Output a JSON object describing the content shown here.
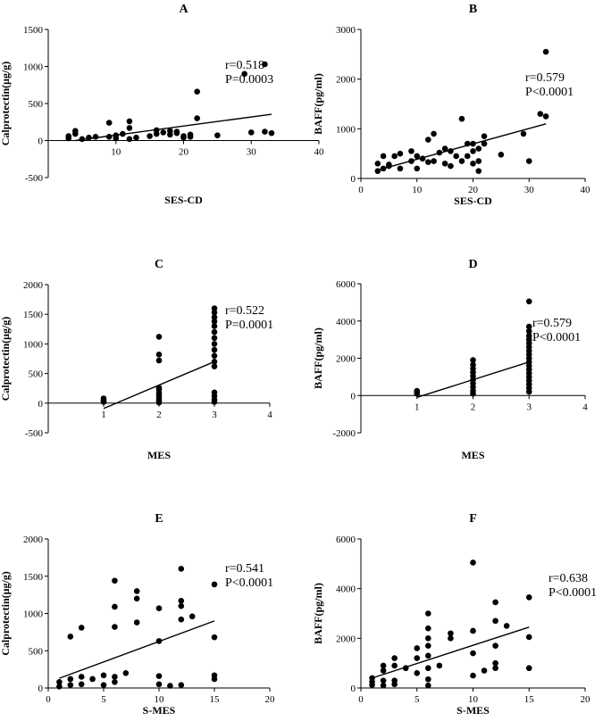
{
  "chart_data": [
    {
      "id": "A",
      "type": "scatter",
      "title": "A",
      "xlabel": "SES-CD",
      "ylabel": "Calprotectin(μg/g)",
      "xlim": [
        0,
        40
      ],
      "ylim": [
        -500,
        1500
      ],
      "xticks": [
        10,
        20,
        30,
        40
      ],
      "yticks": [
        -500,
        0,
        500,
        1000,
        1500
      ],
      "annotation": [
        "r=0.518",
        "P=0.0003"
      ],
      "fit": {
        "x": [
          4,
          33
        ],
        "y": [
          0,
          355
        ]
      },
      "points": [
        [
          3,
          30
        ],
        [
          3,
          60
        ],
        [
          4,
          90
        ],
        [
          4,
          130
        ],
        [
          5,
          20
        ],
        [
          6,
          40
        ],
        [
          7,
          50
        ],
        [
          9,
          240
        ],
        [
          9,
          50
        ],
        [
          10,
          30
        ],
        [
          10,
          70
        ],
        [
          11,
          90
        ],
        [
          12,
          260
        ],
        [
          12,
          170
        ],
        [
          12,
          20
        ],
        [
          13,
          40
        ],
        [
          15,
          60
        ],
        [
          16,
          140
        ],
        [
          16,
          90
        ],
        [
          17,
          110
        ],
        [
          18,
          130
        ],
        [
          18,
          80
        ],
        [
          19,
          100
        ],
        [
          19,
          120
        ],
        [
          20,
          60
        ],
        [
          20,
          40
        ],
        [
          21,
          80
        ],
        [
          21,
          50
        ],
        [
          22,
          660
        ],
        [
          22,
          300
        ],
        [
          25,
          70
        ],
        [
          29,
          900
        ],
        [
          30,
          110
        ],
        [
          32,
          1030
        ],
        [
          32,
          120
        ],
        [
          33,
          100
        ]
      ]
    },
    {
      "id": "B",
      "type": "scatter",
      "title": "B",
      "xlabel": "SES-CD",
      "ylabel": "BAFF(pg/ml)",
      "xlim": [
        0,
        40
      ],
      "ylim": [
        0,
        3000
      ],
      "xticks": [
        0,
        10,
        20,
        30,
        40
      ],
      "yticks": [
        0,
        1000,
        2000,
        3000
      ],
      "annotation": [
        "r=0.579",
        "P<0.0001"
      ],
      "fit": {
        "x": [
          3,
          33
        ],
        "y": [
          170,
          1100
        ]
      },
      "points": [
        [
          3,
          150
        ],
        [
          3,
          300
        ],
        [
          4,
          200
        ],
        [
          4,
          450
        ],
        [
          5,
          250
        ],
        [
          5,
          280
        ],
        [
          6,
          450
        ],
        [
          7,
          500
        ],
        [
          7,
          200
        ],
        [
          9,
          350
        ],
        [
          9,
          550
        ],
        [
          10,
          200
        ],
        [
          10,
          450
        ],
        [
          11,
          400
        ],
        [
          12,
          780
        ],
        [
          12,
          330
        ],
        [
          13,
          900
        ],
        [
          13,
          350
        ],
        [
          14,
          520
        ],
        [
          15,
          600
        ],
        [
          15,
          300
        ],
        [
          16,
          250
        ],
        [
          16,
          550
        ],
        [
          17,
          450
        ],
        [
          18,
          1200
        ],
        [
          18,
          350
        ],
        [
          19,
          700
        ],
        [
          19,
          450
        ],
        [
          20,
          700
        ],
        [
          20,
          550
        ],
        [
          20,
          300
        ],
        [
          21,
          600
        ],
        [
          21,
          350
        ],
        [
          21,
          150
        ],
        [
          22,
          850
        ],
        [
          22,
          700
        ],
        [
          25,
          480
        ],
        [
          29,
          900
        ],
        [
          30,
          350
        ],
        [
          32,
          1300
        ],
        [
          33,
          1250
        ],
        [
          33,
          2550
        ]
      ]
    },
    {
      "id": "C",
      "type": "scatter",
      "title": "C",
      "xlabel": "MES",
      "ylabel": "Calprotectin(μg/g)",
      "xlim": [
        0,
        4
      ],
      "ylim": [
        -500,
        2000
      ],
      "xticks": [
        1,
        2,
        3,
        4
      ],
      "yticks": [
        -500,
        0,
        500,
        1000,
        1500,
        2000
      ],
      "annotation": [
        "r=0.522",
        "P=0.0001"
      ],
      "fit": {
        "x": [
          1,
          3
        ],
        "y": [
          -90,
          700
        ]
      },
      "points": [
        [
          1,
          80
        ],
        [
          1,
          40
        ],
        [
          1,
          20
        ],
        [
          2,
          1120
        ],
        [
          2,
          820
        ],
        [
          2,
          720
        ],
        [
          2,
          260
        ],
        [
          2,
          230
        ],
        [
          2,
          170
        ],
        [
          2,
          130
        ],
        [
          2,
          80
        ],
        [
          2,
          40
        ],
        [
          2,
          10
        ],
        [
          3,
          1600
        ],
        [
          3,
          1530
        ],
        [
          3,
          1450
        ],
        [
          3,
          1380
        ],
        [
          3,
          1300
        ],
        [
          3,
          1200
        ],
        [
          3,
          1100
        ],
        [
          3,
          1000
        ],
        [
          3,
          900
        ],
        [
          3,
          800
        ],
        [
          3,
          700
        ],
        [
          3,
          620
        ],
        [
          3,
          180
        ],
        [
          3,
          120
        ],
        [
          3,
          60
        ],
        [
          3,
          20
        ]
      ]
    },
    {
      "id": "D",
      "type": "scatter",
      "title": "D",
      "xlabel": "MES",
      "ylabel": "BAFF(pg/ml)",
      "xlim": [
        0,
        4
      ],
      "ylim": [
        -2000,
        6000
      ],
      "xticks": [
        1,
        2,
        3,
        4
      ],
      "yticks": [
        -2000,
        0,
        2000,
        4000,
        6000
      ],
      "annotation": [
        "r=0.579",
        "P<0.0001"
      ],
      "fit": {
        "x": [
          1,
          3
        ],
        "y": [
          -100,
          1800
        ]
      },
      "points": [
        [
          1,
          250
        ],
        [
          1,
          180
        ],
        [
          1,
          100
        ],
        [
          2,
          1900
        ],
        [
          2,
          1650
        ],
        [
          2,
          1450
        ],
        [
          2,
          1250
        ],
        [
          2,
          1050
        ],
        [
          2,
          850
        ],
        [
          2,
          650
        ],
        [
          2,
          450
        ],
        [
          2,
          250
        ],
        [
          2,
          100
        ],
        [
          3,
          5050
        ],
        [
          3,
          3700
        ],
        [
          3,
          3450
        ],
        [
          3,
          3200
        ],
        [
          3,
          3000
        ],
        [
          3,
          2800
        ],
        [
          3,
          2600
        ],
        [
          3,
          2400
        ],
        [
          3,
          2200
        ],
        [
          3,
          2000
        ],
        [
          3,
          1800
        ],
        [
          3,
          1600
        ],
        [
          3,
          1400
        ],
        [
          3,
          1200
        ],
        [
          3,
          1000
        ],
        [
          3,
          800
        ],
        [
          3,
          600
        ],
        [
          3,
          400
        ],
        [
          3,
          200
        ]
      ]
    },
    {
      "id": "E",
      "type": "scatter",
      "title": "E",
      "xlabel": "S-MES",
      "ylabel": "Calprotectin(μg/g)",
      "xlim": [
        0,
        20
      ],
      "ylim": [
        0,
        2000
      ],
      "xticks": [
        0,
        5,
        10,
        15,
        20
      ],
      "yticks": [
        0,
        500,
        1000,
        1500,
        2000
      ],
      "annotation": [
        "r=0.541",
        "P<0.0001"
      ],
      "fit": {
        "x": [
          1,
          15
        ],
        "y": [
          130,
          900
        ]
      },
      "points": [
        [
          1,
          80
        ],
        [
          1,
          20
        ],
        [
          2,
          690
        ],
        [
          2,
          120
        ],
        [
          2,
          40
        ],
        [
          3,
          810
        ],
        [
          3,
          150
        ],
        [
          3,
          50
        ],
        [
          4,
          120
        ],
        [
          5,
          170
        ],
        [
          5,
          40
        ],
        [
          6,
          1440
        ],
        [
          6,
          1090
        ],
        [
          6,
          820
        ],
        [
          6,
          150
        ],
        [
          6,
          80
        ],
        [
          7,
          200
        ],
        [
          8,
          1300
        ],
        [
          8,
          1200
        ],
        [
          8,
          880
        ],
        [
          10,
          1070
        ],
        [
          10,
          630
        ],
        [
          10,
          160
        ],
        [
          10,
          50
        ],
        [
          11,
          30
        ],
        [
          12,
          1600
        ],
        [
          12,
          1170
        ],
        [
          12,
          1100
        ],
        [
          12,
          920
        ],
        [
          12,
          40
        ],
        [
          13,
          960
        ],
        [
          15,
          1390
        ],
        [
          15,
          680
        ],
        [
          15,
          170
        ],
        [
          15,
          120
        ]
      ]
    },
    {
      "id": "F",
      "type": "scatter",
      "title": "F",
      "xlabel": "S-MES",
      "ylabel": "BAFF(pg/ml)",
      "xlim": [
        0,
        20
      ],
      "ylim": [
        0,
        6000
      ],
      "xticks": [
        0,
        5,
        10,
        15,
        20
      ],
      "yticks": [
        0,
        2000,
        4000,
        6000
      ],
      "annotation": [
        "r=0.638",
        "P<0.0001"
      ],
      "fit": {
        "x": [
          1,
          15
        ],
        "y": [
          400,
          2450
        ]
      },
      "points": [
        [
          1,
          400
        ],
        [
          1,
          250
        ],
        [
          1,
          120
        ],
        [
          2,
          900
        ],
        [
          2,
          700
        ],
        [
          2,
          300
        ],
        [
          2,
          100
        ],
        [
          3,
          1200
        ],
        [
          3,
          900
        ],
        [
          3,
          300
        ],
        [
          3,
          150
        ],
        [
          4,
          800
        ],
        [
          5,
          1600
        ],
        [
          5,
          1200
        ],
        [
          5,
          600
        ],
        [
          6,
          3000
        ],
        [
          6,
          2400
        ],
        [
          6,
          2000
        ],
        [
          6,
          1700
        ],
        [
          6,
          1300
        ],
        [
          6,
          800
        ],
        [
          6,
          350
        ],
        [
          6,
          100
        ],
        [
          7,
          900
        ],
        [
          8,
          2200
        ],
        [
          8,
          2000
        ],
        [
          10,
          5050
        ],
        [
          10,
          2300
        ],
        [
          10,
          1400
        ],
        [
          10,
          500
        ],
        [
          11,
          700
        ],
        [
          12,
          3450
        ],
        [
          12,
          2700
        ],
        [
          12,
          1700
        ],
        [
          12,
          1000
        ],
        [
          12,
          800
        ],
        [
          13,
          2500
        ],
        [
          15,
          3650
        ],
        [
          15,
          2050
        ],
        [
          15,
          800
        ]
      ]
    }
  ]
}
